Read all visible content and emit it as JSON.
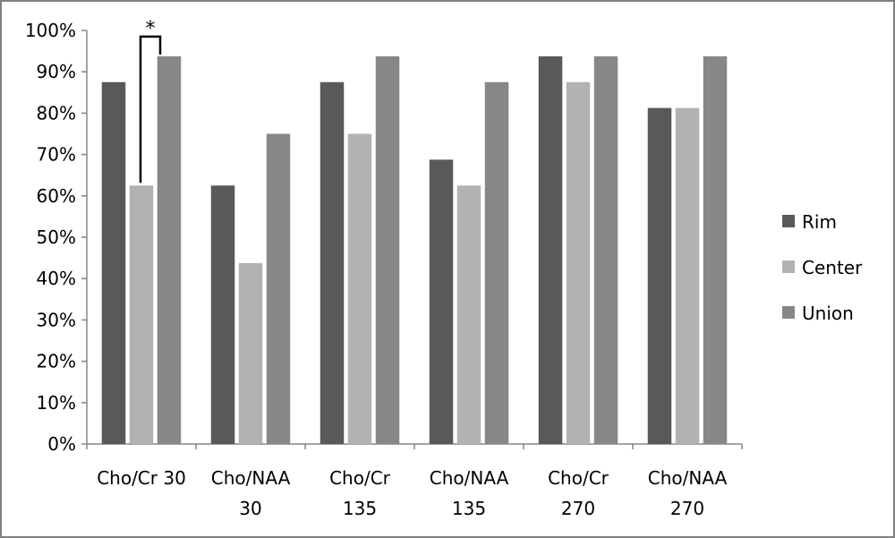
{
  "chart_data": {
    "type": "bar",
    "categories": [
      [
        "Cho/Cr 30"
      ],
      [
        "Cho/NAA",
        "30"
      ],
      [
        "Cho/Cr",
        "135"
      ],
      [
        "Cho/NAA",
        "135"
      ],
      [
        "Cho/Cr",
        "270"
      ],
      [
        "Cho/NAA",
        "270"
      ]
    ],
    "series": [
      {
        "name": "Rim",
        "color": "#595959",
        "values": [
          87.5,
          62.5,
          87.5,
          68.75,
          93.75,
          81.25
        ]
      },
      {
        "name": "Center",
        "color": "#b2b2b2",
        "values": [
          62.5,
          43.75,
          75,
          62.5,
          87.5,
          81.25
        ]
      },
      {
        "name": "Union",
        "color": "#878787",
        "values": [
          93.75,
          75,
          93.75,
          87.5,
          93.75,
          93.75
        ]
      }
    ],
    "ylim": [
      0,
      100
    ],
    "yticks": [
      "0%",
      "10%",
      "20%",
      "30%",
      "40%",
      "50%",
      "60%",
      "70%",
      "80%",
      "90%",
      "100%"
    ],
    "legend_position": "right",
    "grid": false,
    "annotations": [
      {
        "text": "*",
        "category_index": 0,
        "from_series": 1,
        "to_series": 2
      }
    ]
  }
}
